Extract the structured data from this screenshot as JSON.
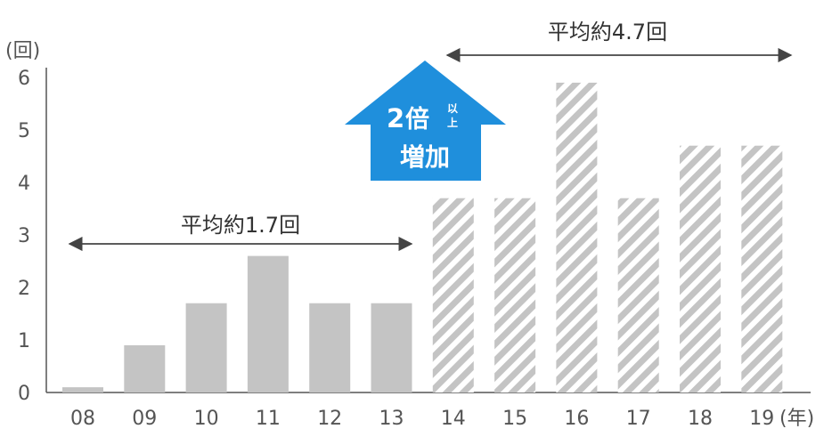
{
  "chart_data": {
    "type": "bar",
    "title": "",
    "xlabel": "",
    "ylabel": "",
    "y_unit": "(回)",
    "x_unit": "(年)",
    "categories": [
      "08",
      "09",
      "10",
      "11",
      "12",
      "13",
      "14",
      "15",
      "16",
      "17",
      "18",
      "19"
    ],
    "values": [
      0.1,
      0.9,
      1.7,
      2.6,
      1.7,
      1.7,
      3.7,
      3.7,
      5.9,
      3.7,
      4.7,
      4.7
    ],
    "ylim": [
      0,
      6
    ],
    "yticks": [
      "0",
      "1",
      "2",
      "3",
      "4",
      "5",
      "6"
    ],
    "grid": false,
    "colors": {
      "solid_bar": "#c4c4c4",
      "hatched_bar": "#c4c4c4",
      "arrow": "#1f8fdc",
      "axis": "#555555"
    },
    "annotations": [
      {
        "text": "平均約1.7回",
        "range": [
          "08",
          "13"
        ]
      },
      {
        "text": "平均約4.7回",
        "range": [
          "14",
          "19"
        ]
      }
    ],
    "increase_arrow": {
      "number": "2",
      "unit": "倍",
      "small_top": "以",
      "small_bottom": "上",
      "bottom": "増加"
    }
  }
}
